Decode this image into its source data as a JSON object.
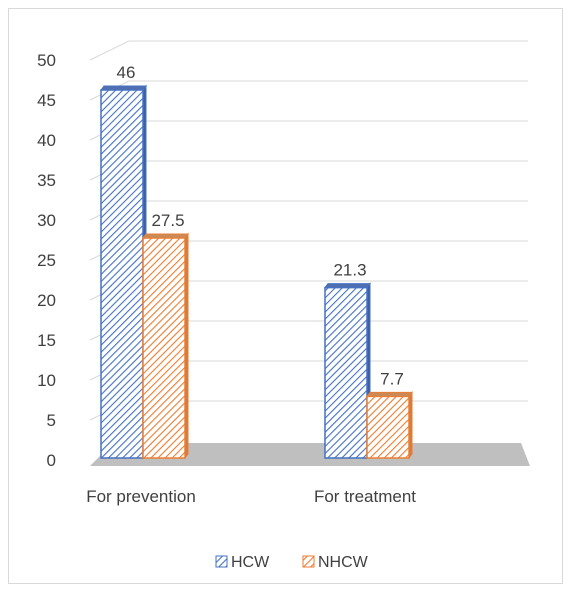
{
  "chart_data": {
    "type": "bar",
    "categories": [
      "For prevention",
      "For treatment"
    ],
    "series": [
      {
        "name": "HCW",
        "values": [
          46,
          21.3
        ],
        "color": "#4472c4"
      },
      {
        "name": "NHCW",
        "values": [
          27.5,
          7.7
        ],
        "color": "#ed7d31"
      }
    ],
    "data_labels": [
      [
        "46",
        "21.3"
      ],
      [
        "27.5",
        "7.7"
      ]
    ],
    "yticks": [
      "0",
      "5",
      "10",
      "15",
      "20",
      "25",
      "30",
      "35",
      "40",
      "45",
      "50"
    ],
    "ylim": [
      0,
      50
    ],
    "grid": true,
    "legend_position": "bottom",
    "style": "3d-hatched"
  }
}
